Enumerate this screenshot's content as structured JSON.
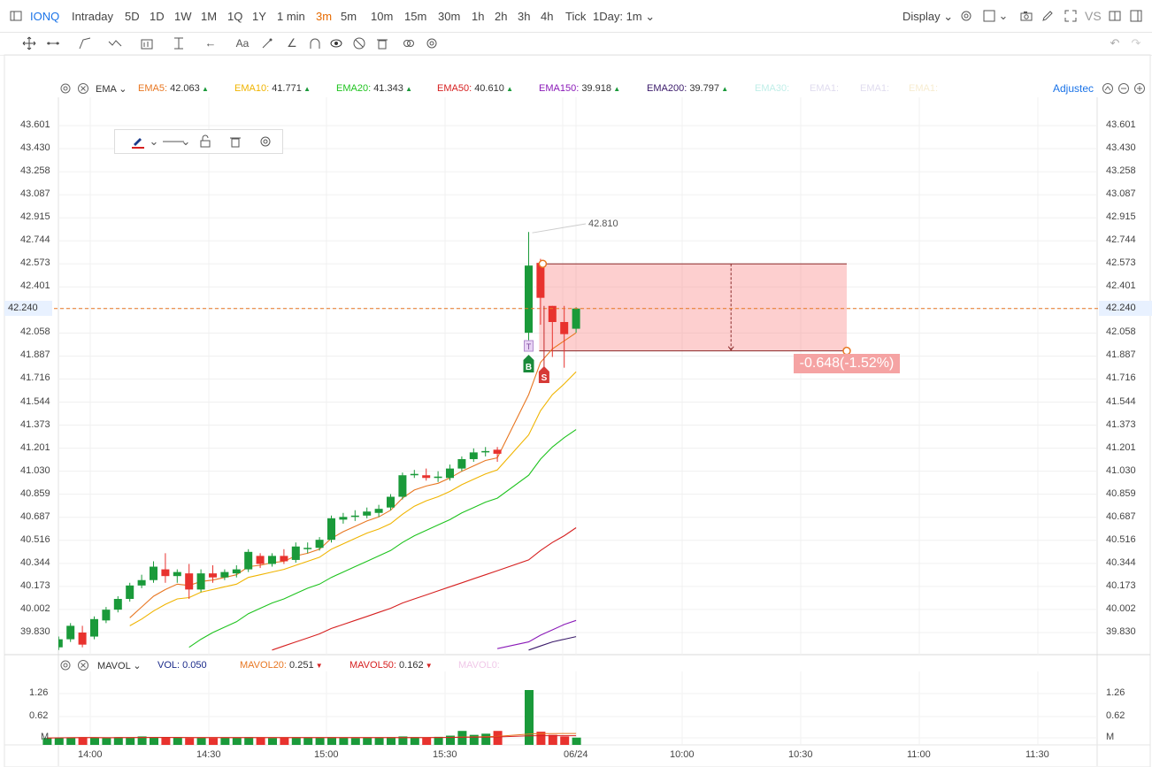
{
  "topbar": {
    "symbol": "IONQ",
    "timeframes": [
      "Intraday",
      "5D",
      "1D",
      "1W",
      "1M",
      "1Q",
      "1Y",
      "1 min",
      "3m",
      "5m",
      "10m",
      "15m",
      "30m",
      "1h",
      "2h",
      "3h",
      "4h",
      "Tick"
    ],
    "active_timeframe": "3m",
    "range_select": "1Day: 1m",
    "display_label": "Display",
    "vs_label": "VS"
  },
  "legend": {
    "indicator": "EMA",
    "items": [
      {
        "label": "EMA5:",
        "value": "42.063",
        "color": "#e87722"
      },
      {
        "label": "EMA10:",
        "value": "41.771",
        "color": "#f0b400"
      },
      {
        "label": "EMA20:",
        "value": "41.343",
        "color": "#1ec31e"
      },
      {
        "label": "EMA50:",
        "value": "40.610",
        "color": "#d62020"
      },
      {
        "label": "EMA150:",
        "value": "39.918",
        "color": "#8a1ab8"
      },
      {
        "label": "EMA200:",
        "value": "39.797",
        "color": "#3a1a6a"
      }
    ],
    "faded": [
      "EMA30:",
      "EMA1:",
      "EMA1:",
      "EMA1:"
    ],
    "adjusted_label": "Adjustec"
  },
  "vol_legend": {
    "indicator": "MAVOL",
    "items": [
      {
        "label": "VOL:",
        "value": "0.050",
        "color": "#1a2a8a"
      },
      {
        "label": "MAVOL20:",
        "value": "0.251",
        "color": "#e87722"
      },
      {
        "label": "MAVOL50:",
        "value": "0.162",
        "color": "#d62020"
      }
    ],
    "faded": [
      "MAVOL0:"
    ]
  },
  "price_axis": {
    "ticks": [
      "43.601",
      "43.430",
      "43.258",
      "43.087",
      "42.915",
      "42.744",
      "42.573",
      "42.401",
      "42.240",
      "42.058",
      "41.887",
      "41.716",
      "41.544",
      "41.373",
      "41.201",
      "41.030",
      "40.859",
      "40.687",
      "40.516",
      "40.344",
      "40.173",
      "40.002",
      "39.830"
    ],
    "current": "42.240"
  },
  "vol_axis": {
    "ticks": [
      "1.26",
      "0.62",
      "M"
    ]
  },
  "time_axis": {
    "ticks": [
      "14:00",
      "14:30",
      "15:00",
      "15:30",
      "06/24",
      "10:00",
      "10:30",
      "11:00",
      "11:30"
    ]
  },
  "annotations": {
    "high_label": "42.810",
    "buy_marker": "B",
    "sell_marker": "S",
    "t_marker": "T",
    "range_measure": "-0.648(-1.52%)"
  },
  "colors": {
    "up": "#1a9a3a",
    "down": "#e8322e",
    "accent": "#e66a00",
    "link": "#1a73e8"
  },
  "chart_data": {
    "type": "candlestick",
    "xlabel": "",
    "ylabel": "",
    "ylim": [
      39.7,
      43.65
    ],
    "x_start": "13:48",
    "interval_minutes": 3,
    "candles": [
      {
        "t": "13:48",
        "o": 39.7,
        "h": 39.73,
        "l": 39.69,
        "c": 39.71
      },
      {
        "t": "13:51",
        "o": 39.72,
        "h": 39.8,
        "l": 39.7,
        "c": 39.78
      },
      {
        "t": "13:54",
        "o": 39.78,
        "h": 39.9,
        "l": 39.76,
        "c": 39.88
      },
      {
        "t": "13:57",
        "o": 39.83,
        "h": 39.88,
        "l": 39.72,
        "c": 39.74
      },
      {
        "t": "14:00",
        "o": 39.8,
        "h": 39.95,
        "l": 39.78,
        "c": 39.93
      },
      {
        "t": "14:03",
        "o": 39.92,
        "h": 40.02,
        "l": 39.9,
        "c": 40.0
      },
      {
        "t": "14:06",
        "o": 40.0,
        "h": 40.1,
        "l": 39.98,
        "c": 40.08
      },
      {
        "t": "14:09",
        "o": 40.08,
        "h": 40.2,
        "l": 40.06,
        "c": 40.18
      },
      {
        "t": "14:12",
        "o": 40.18,
        "h": 40.26,
        "l": 40.16,
        "c": 40.22
      },
      {
        "t": "14:15",
        "o": 40.22,
        "h": 40.36,
        "l": 40.2,
        "c": 40.32
      },
      {
        "t": "14:18",
        "o": 40.3,
        "h": 40.42,
        "l": 40.2,
        "c": 40.25
      },
      {
        "t": "14:21",
        "o": 40.25,
        "h": 40.3,
        "l": 40.2,
        "c": 40.28
      },
      {
        "t": "14:24",
        "o": 40.27,
        "h": 40.34,
        "l": 40.08,
        "c": 40.15
      },
      {
        "t": "14:27",
        "o": 40.15,
        "h": 40.3,
        "l": 40.13,
        "c": 40.27
      },
      {
        "t": "14:30",
        "o": 40.27,
        "h": 40.33,
        "l": 40.2,
        "c": 40.24
      },
      {
        "t": "14:33",
        "o": 40.24,
        "h": 40.3,
        "l": 40.22,
        "c": 40.28
      },
      {
        "t": "14:36",
        "o": 40.27,
        "h": 40.33,
        "l": 40.24,
        "c": 40.3
      },
      {
        "t": "14:39",
        "o": 40.3,
        "h": 40.45,
        "l": 40.28,
        "c": 40.43
      },
      {
        "t": "14:42",
        "o": 40.4,
        "h": 40.42,
        "l": 40.31,
        "c": 40.34
      },
      {
        "t": "14:45",
        "o": 40.34,
        "h": 40.42,
        "l": 40.32,
        "c": 40.4
      },
      {
        "t": "14:48",
        "o": 40.4,
        "h": 40.45,
        "l": 40.34,
        "c": 40.36
      },
      {
        "t": "14:51",
        "o": 40.37,
        "h": 40.5,
        "l": 40.35,
        "c": 40.47
      },
      {
        "t": "14:54",
        "o": 40.46,
        "h": 40.5,
        "l": 40.42,
        "c": 40.46
      },
      {
        "t": "14:57",
        "o": 40.46,
        "h": 40.54,
        "l": 40.44,
        "c": 40.52
      },
      {
        "t": "15:00",
        "o": 40.52,
        "h": 40.7,
        "l": 40.5,
        "c": 40.68
      },
      {
        "t": "15:03",
        "o": 40.67,
        "h": 40.72,
        "l": 40.64,
        "c": 40.69
      },
      {
        "t": "15:06",
        "o": 40.69,
        "h": 40.74,
        "l": 40.66,
        "c": 40.7
      },
      {
        "t": "15:09",
        "o": 40.7,
        "h": 40.76,
        "l": 40.68,
        "c": 40.73
      },
      {
        "t": "15:12",
        "o": 40.72,
        "h": 40.78,
        "l": 40.69,
        "c": 40.75
      },
      {
        "t": "15:15",
        "o": 40.76,
        "h": 40.86,
        "l": 40.74,
        "c": 40.84
      },
      {
        "t": "15:18",
        "o": 40.84,
        "h": 41.02,
        "l": 40.82,
        "c": 41.0
      },
      {
        "t": "15:21",
        "o": 41.0,
        "h": 41.04,
        "l": 40.98,
        "c": 41.01
      },
      {
        "t": "15:24",
        "o": 41.0,
        "h": 41.05,
        "l": 40.96,
        "c": 40.98
      },
      {
        "t": "15:27",
        "o": 40.98,
        "h": 41.03,
        "l": 40.95,
        "c": 40.99
      },
      {
        "t": "15:30",
        "o": 40.98,
        "h": 41.08,
        "l": 40.96,
        "c": 41.05
      },
      {
        "t": "15:33",
        "o": 41.05,
        "h": 41.14,
        "l": 41.03,
        "c": 41.12
      },
      {
        "t": "15:36",
        "o": 41.12,
        "h": 41.2,
        "l": 41.1,
        "c": 41.17
      },
      {
        "t": "15:39",
        "o": 41.17,
        "h": 41.21,
        "l": 41.14,
        "c": 41.18
      },
      {
        "t": "15:42",
        "o": 41.19,
        "h": 41.21,
        "l": 41.1,
        "c": 41.16
      },
      {
        "t": "15:45",
        "o": 42.06,
        "h": 42.81,
        "l": 42.0,
        "c": 42.56
      },
      {
        "t": "15:48",
        "o": 42.58,
        "h": 42.61,
        "l": 42.12,
        "c": 42.32
      },
      {
        "t": "15:51",
        "o": 42.26,
        "h": 42.26,
        "l": 41.88,
        "c": 42.14
      },
      {
        "t": "15:54",
        "o": 42.14,
        "h": 42.26,
        "l": 41.8,
        "c": 42.05
      },
      {
        "t": "15:57",
        "o": 42.09,
        "h": 42.25,
        "l": 42.06,
        "c": 42.24
      }
    ],
    "volume": [
      0.04,
      0.05,
      0.05,
      0.06,
      0.05,
      0.04,
      0.06,
      0.05,
      0.08,
      0.05,
      0.06,
      0.05,
      0.04,
      0.05,
      0.04,
      0.05,
      0.05,
      0.06,
      0.05,
      0.04,
      0.05,
      0.06,
      0.05,
      0.05,
      0.06,
      0.05,
      0.04,
      0.05,
      0.05,
      0.06,
      0.08,
      0.06,
      0.05,
      0.07,
      0.1,
      0.22,
      0.12,
      0.15,
      0.22,
      1.26,
      0.2,
      0.12,
      0.08,
      0.05
    ],
    "series": [
      {
        "name": "EMA5",
        "values": [
          null,
          null,
          null,
          null,
          null,
          null,
          null,
          39.94,
          40.02,
          40.1,
          40.15,
          40.19,
          40.18,
          40.21,
          40.22,
          40.24,
          40.26,
          40.32,
          40.33,
          40.35,
          40.36,
          40.4,
          40.42,
          40.45,
          40.53,
          40.58,
          40.62,
          40.66,
          40.69,
          40.74,
          40.83,
          40.89,
          40.92,
          40.94,
          40.98,
          41.03,
          41.07,
          41.11,
          41.13,
          41.6,
          41.84,
          41.94,
          42.0,
          42.06
        ]
      },
      {
        "name": "EMA10",
        "values": [
          null,
          null,
          null,
          null,
          null,
          null,
          null,
          39.88,
          39.93,
          39.99,
          40.04,
          40.08,
          40.09,
          40.13,
          40.15,
          40.17,
          40.19,
          40.24,
          40.26,
          40.28,
          40.3,
          40.33,
          40.36,
          40.39,
          40.45,
          40.49,
          40.53,
          40.57,
          40.6,
          40.64,
          40.71,
          40.77,
          40.81,
          40.84,
          40.88,
          40.93,
          40.97,
          41.01,
          41.04,
          41.3,
          41.48,
          41.6,
          41.68,
          41.77
        ]
      },
      {
        "name": "EMA20",
        "values": [
          null,
          null,
          null,
          null,
          null,
          null,
          null,
          null,
          null,
          null,
          null,
          null,
          39.72,
          39.78,
          39.83,
          39.87,
          39.91,
          39.97,
          40.01,
          40.05,
          40.08,
          40.12,
          40.16,
          40.19,
          40.24,
          40.28,
          40.32,
          40.36,
          40.4,
          40.44,
          40.5,
          40.55,
          40.59,
          40.63,
          40.67,
          40.72,
          40.76,
          40.8,
          40.83,
          41.0,
          41.12,
          41.21,
          41.28,
          41.34
        ]
      },
      {
        "name": "EMA50",
        "values": [
          null,
          null,
          null,
          null,
          null,
          null,
          null,
          null,
          null,
          null,
          null,
          null,
          null,
          null,
          null,
          null,
          null,
          null,
          null,
          39.7,
          39.73,
          39.76,
          39.79,
          39.82,
          39.86,
          39.89,
          39.92,
          39.95,
          39.98,
          40.01,
          40.05,
          40.08,
          40.11,
          40.14,
          40.17,
          40.2,
          40.23,
          40.26,
          40.29,
          40.37,
          40.44,
          40.5,
          40.55,
          40.61
        ]
      },
      {
        "name": "EMA150",
        "values": [
          null,
          null,
          null,
          null,
          null,
          null,
          null,
          null,
          null,
          null,
          null,
          null,
          null,
          null,
          null,
          null,
          null,
          null,
          null,
          null,
          null,
          null,
          null,
          null,
          null,
          null,
          null,
          null,
          null,
          null,
          null,
          null,
          null,
          null,
          null,
          null,
          null,
          null,
          39.71,
          39.76,
          39.81,
          39.85,
          39.89,
          39.92
        ]
      },
      {
        "name": "EMA200",
        "values": [
          null,
          null,
          null,
          null,
          null,
          null,
          null,
          null,
          null,
          null,
          null,
          null,
          null,
          null,
          null,
          null,
          null,
          null,
          null,
          null,
          null,
          null,
          null,
          null,
          null,
          null,
          null,
          null,
          null,
          null,
          null,
          null,
          null,
          null,
          null,
          null,
          null,
          null,
          null,
          39.7,
          39.73,
          39.76,
          39.78,
          39.8
        ]
      }
    ],
    "range_box": {
      "from_price": 42.573,
      "to_price": 41.925,
      "start": "15:48",
      "end": "16:51"
    }
  }
}
